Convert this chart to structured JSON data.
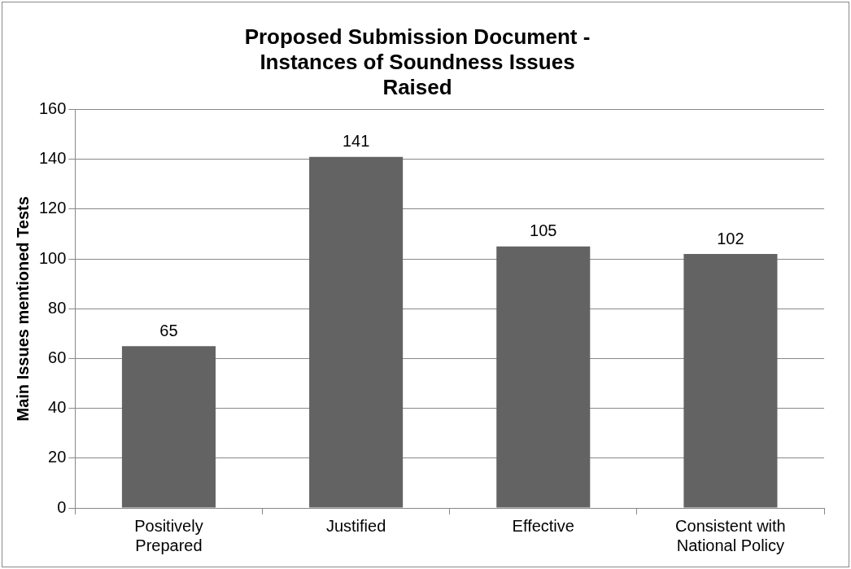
{
  "chart_data": {
    "type": "bar",
    "title": "Proposed Submission Document - Instances of Soundness Issues Raised",
    "ylabel": "Main Issues mentioned Tests",
    "categories": [
      "Positively Prepared",
      "Justified",
      "Effective",
      "Consistent with National Policy"
    ],
    "values": [
      65,
      141,
      105,
      102
    ],
    "color": "#636363",
    "ylim": [
      0,
      160
    ],
    "yticks": [
      0,
      20,
      40,
      60,
      80,
      100,
      120,
      140,
      160
    ],
    "grid": "y",
    "legend": false,
    "data_labels": true
  }
}
